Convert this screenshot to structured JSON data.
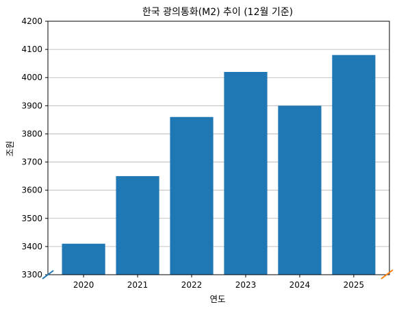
{
  "chart_data": {
    "type": "bar",
    "title": "한국 광의통화(M2) 추이 (12월 기준)",
    "xlabel": "연도",
    "ylabel": "조원",
    "categories": [
      "2020",
      "2021",
      "2022",
      "2023",
      "2024",
      "2025"
    ],
    "values": [
      3410,
      3650,
      3860,
      4020,
      3900,
      4080
    ],
    "ylim": [
      3300,
      4200
    ],
    "yticks": [
      3300,
      3400,
      3500,
      3600,
      3700,
      3800,
      3900,
      4000,
      4100,
      4200
    ],
    "grid": "horizontal",
    "bar_color": "#1f77b4",
    "axis_break_colors": [
      "#1f77b4",
      "#ff7f0e"
    ]
  }
}
